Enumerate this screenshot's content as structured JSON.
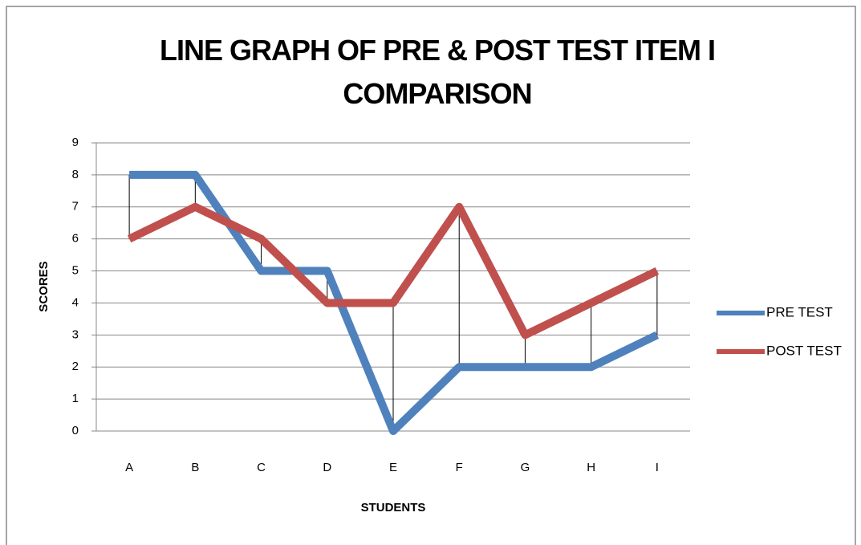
{
  "chart_data": {
    "type": "line",
    "title": "LINE GRAPH OF PRE & POST TEST ITEM I COMPARISON",
    "x_label": "STUDENTS",
    "y_label": "SCORES",
    "categories": [
      "A",
      "B",
      "C",
      "D",
      "E",
      "F",
      "G",
      "H",
      "I"
    ],
    "series": [
      {
        "name": "PRE TEST",
        "color": "#4f81bd",
        "values": [
          8,
          8,
          5,
          5,
          0,
          2,
          2,
          2,
          3
        ]
      },
      {
        "name": "POST TEST",
        "color": "#c0504d",
        "values": [
          6,
          7,
          6,
          4,
          4,
          7,
          3,
          4,
          5
        ]
      }
    ],
    "ylim": [
      0,
      9
    ],
    "yticks": [
      0,
      1,
      2,
      3,
      4,
      5,
      6,
      7,
      8,
      9
    ],
    "grid": true,
    "high_low_lines": true,
    "legend": "right"
  }
}
